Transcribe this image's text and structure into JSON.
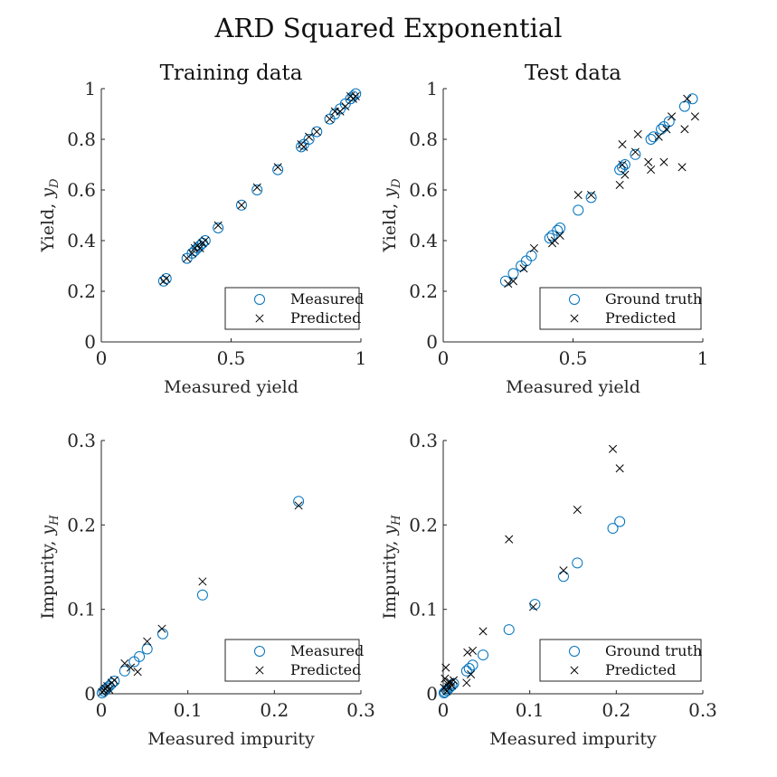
{
  "figure_title": "ARD Squared Exponential",
  "colors": {
    "measured": "#0072BD",
    "predicted": "#000000",
    "axis": "#262626"
  },
  "chart_data": [
    {
      "type": "scatter",
      "title": "Training data",
      "xlabel": "Measured yield",
      "ylabel": "Yield,",
      "ylabel_var": "y",
      "ylabel_sub": "D",
      "xlim": [
        0,
        1
      ],
      "ylim": [
        0,
        1
      ],
      "xticks": [
        0,
        0.5,
        1
      ],
      "xtick_labels": [
        "0",
        "0.5",
        "1"
      ],
      "yticks": [
        0,
        0.2,
        0.4,
        0.6,
        0.8,
        1
      ],
      "ytick_labels": [
        "0",
        "0.2",
        "0.4",
        "0.6",
        "0.8",
        "1"
      ],
      "legend_position": "bottom-right",
      "series": [
        {
          "name": "Measured",
          "marker": "circle",
          "x": [
            0.24,
            0.25,
            0.33,
            0.35,
            0.36,
            0.37,
            0.38,
            0.39,
            0.4,
            0.45,
            0.54,
            0.6,
            0.68,
            0.77,
            0.78,
            0.8,
            0.83,
            0.88,
            0.9,
            0.92,
            0.94,
            0.96,
            0.97,
            0.98
          ],
          "y": [
            0.24,
            0.25,
            0.33,
            0.35,
            0.36,
            0.37,
            0.38,
            0.39,
            0.4,
            0.45,
            0.54,
            0.6,
            0.68,
            0.77,
            0.78,
            0.8,
            0.83,
            0.88,
            0.9,
            0.92,
            0.94,
            0.96,
            0.97,
            0.98
          ]
        },
        {
          "name": "Predicted",
          "marker": "x",
          "x": [
            0.24,
            0.25,
            0.33,
            0.35,
            0.36,
            0.37,
            0.38,
            0.39,
            0.4,
            0.45,
            0.54,
            0.6,
            0.68,
            0.77,
            0.78,
            0.8,
            0.83,
            0.88,
            0.9,
            0.92,
            0.94,
            0.96,
            0.97,
            0.98
          ],
          "y": [
            0.24,
            0.25,
            0.33,
            0.35,
            0.37,
            0.38,
            0.37,
            0.39,
            0.4,
            0.46,
            0.54,
            0.61,
            0.69,
            0.78,
            0.77,
            0.81,
            0.83,
            0.88,
            0.91,
            0.91,
            0.93,
            0.97,
            0.96,
            0.97
          ]
        }
      ]
    },
    {
      "type": "scatter",
      "title": "Test data",
      "xlabel": "Measured yield",
      "ylabel": "Yield,",
      "ylabel_var": "y",
      "ylabel_sub": "D",
      "xlim": [
        0,
        1
      ],
      "ylim": [
        0,
        1
      ],
      "xticks": [
        0,
        0.5,
        1
      ],
      "xtick_labels": [
        "0",
        "0.5",
        "1"
      ],
      "yticks": [
        0,
        0.2,
        0.4,
        0.6,
        0.8,
        1
      ],
      "ytick_labels": [
        "0",
        "0.2",
        "0.4",
        "0.6",
        "0.8",
        "1"
      ],
      "legend_position": "bottom-right",
      "series": [
        {
          "name": "Ground truth",
          "marker": "circle",
          "x": [
            0.24,
            0.27,
            0.3,
            0.32,
            0.34,
            0.41,
            0.42,
            0.44,
            0.45,
            0.52,
            0.57,
            0.68,
            0.69,
            0.7,
            0.74,
            0.8,
            0.81,
            0.84,
            0.85,
            0.87,
            0.93,
            0.96
          ],
          "y": [
            0.24,
            0.27,
            0.3,
            0.32,
            0.34,
            0.41,
            0.42,
            0.44,
            0.45,
            0.52,
            0.57,
            0.68,
            0.69,
            0.7,
            0.74,
            0.8,
            0.81,
            0.84,
            0.85,
            0.87,
            0.93,
            0.96
          ]
        },
        {
          "name": "Predicted",
          "marker": "x",
          "x": [
            0.25,
            0.27,
            0.31,
            0.35,
            0.42,
            0.43,
            0.45,
            0.52,
            0.57,
            0.68,
            0.69,
            0.69,
            0.7,
            0.74,
            0.75,
            0.79,
            0.8,
            0.83,
            0.85,
            0.86,
            0.88,
            0.92,
            0.93,
            0.94,
            0.97
          ],
          "y": [
            0.23,
            0.24,
            0.29,
            0.37,
            0.39,
            0.4,
            0.42,
            0.58,
            0.58,
            0.62,
            0.7,
            0.78,
            0.66,
            0.75,
            0.82,
            0.71,
            0.68,
            0.81,
            0.71,
            0.84,
            0.89,
            0.69,
            0.84,
            0.96,
            0.89
          ]
        }
      ]
    },
    {
      "type": "scatter",
      "title": "",
      "xlabel": "Measured impurity",
      "ylabel": "Impurity,",
      "ylabel_var": "y",
      "ylabel_sub": "H",
      "xlim": [
        0,
        0.3
      ],
      "ylim": [
        0,
        0.3
      ],
      "xticks": [
        0,
        0.1,
        0.2,
        0.3
      ],
      "xtick_labels": [
        "0",
        "0.1",
        "0.2",
        "0.3"
      ],
      "yticks": [
        0,
        0.1,
        0.2,
        0.3
      ],
      "ytick_labels": [
        "0",
        "0.1",
        "0.2",
        "0.3"
      ],
      "legend_position": "bottom-right",
      "series": [
        {
          "name": "Measured",
          "marker": "circle",
          "x": [
            0.001,
            0.003,
            0.005,
            0.007,
            0.009,
            0.012,
            0.015,
            0.027,
            0.038,
            0.044,
            0.053,
            0.071,
            0.117,
            0.228
          ],
          "y": [
            0.001,
            0.003,
            0.005,
            0.007,
            0.009,
            0.012,
            0.015,
            0.027,
            0.038,
            0.044,
            0.053,
            0.071,
            0.117,
            0.228
          ]
        },
        {
          "name": "Predicted",
          "marker": "x",
          "x": [
            0.001,
            0.003,
            0.005,
            0.007,
            0.009,
            0.012,
            0.015,
            0.027,
            0.034,
            0.042,
            0.053,
            0.07,
            0.117,
            0.228
          ],
          "y": [
            0.002,
            0.004,
            0.006,
            0.009,
            0.005,
            0.013,
            0.016,
            0.036,
            0.031,
            0.026,
            0.062,
            0.077,
            0.133,
            0.223
          ]
        }
      ]
    },
    {
      "type": "scatter",
      "title": "",
      "xlabel": "Measured impurity",
      "ylabel": "Impurity,",
      "ylabel_var": "y",
      "ylabel_sub": "H",
      "xlim": [
        0,
        0.3
      ],
      "ylim": [
        0,
        0.3
      ],
      "xticks": [
        0,
        0.1,
        0.2,
        0.3
      ],
      "xtick_labels": [
        "0",
        "0.1",
        "0.2",
        "0.3"
      ],
      "yticks": [
        0,
        0.1,
        0.2,
        0.3
      ],
      "ytick_labels": [
        "0",
        "0.1",
        "0.2",
        "0.3"
      ],
      "legend_position": "bottom-right",
      "series": [
        {
          "name": "Ground truth",
          "marker": "circle",
          "x": [
            0.001,
            0.002,
            0.004,
            0.006,
            0.008,
            0.01,
            0.012,
            0.027,
            0.03,
            0.034,
            0.046,
            0.076,
            0.106,
            0.139,
            0.155,
            0.196,
            0.204
          ],
          "y": [
            0.001,
            0.002,
            0.004,
            0.006,
            0.008,
            0.01,
            0.012,
            0.027,
            0.03,
            0.034,
            0.046,
            0.076,
            0.106,
            0.139,
            0.155,
            0.196,
            0.204
          ]
        },
        {
          "name": "Predicted",
          "marker": "x",
          "x": [
            0.001,
            0.002,
            0.003,
            0.004,
            0.005,
            0.006,
            0.008,
            0.01,
            0.012,
            0.027,
            0.028,
            0.032,
            0.034,
            0.046,
            0.076,
            0.104,
            0.139,
            0.155,
            0.196,
            0.204
          ],
          "y": [
            0.007,
            0.018,
            0.031,
            0.003,
            0.012,
            0.008,
            0.014,
            0.01,
            0.016,
            0.013,
            0.049,
            0.023,
            0.051,
            0.074,
            0.183,
            0.103,
            0.146,
            0.218,
            0.29,
            0.267
          ]
        }
      ]
    }
  ]
}
